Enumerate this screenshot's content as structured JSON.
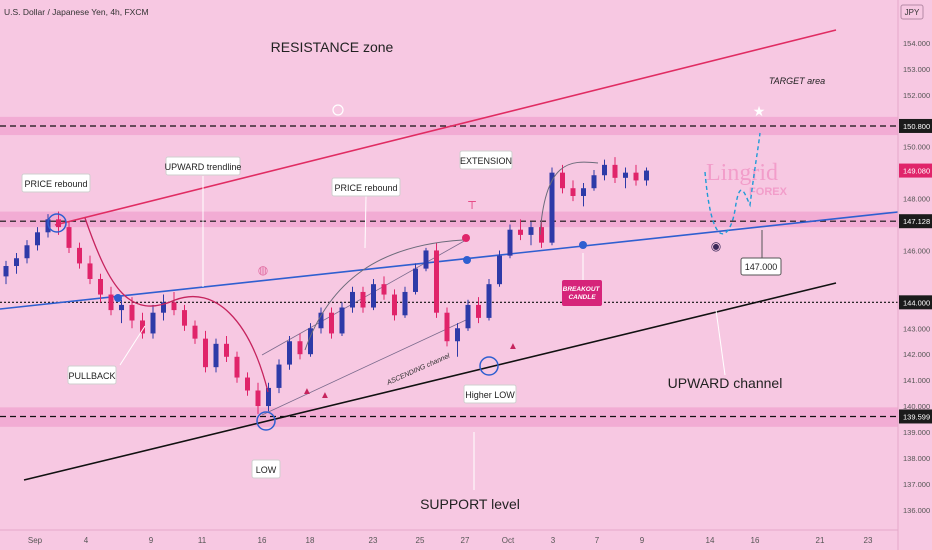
{
  "header": {
    "symbol_title": "U.S. Dollar / Japanese Yen, 4h, FXCM",
    "currency": "JPY"
  },
  "watermark": {
    "text": "Lingrid",
    "sub": "FOREX"
  },
  "colors": {
    "background": "#f7c8e2",
    "zone_band": "#f0a3cf",
    "bull_candle": "#2e3aa8",
    "bear_candle": "#e0246a",
    "trendline_blue": "#2f5fd0",
    "channel_red": "#e02c62",
    "support_black": "#111111",
    "badge_pink": "#d6247a"
  },
  "annotations": {
    "resistance_zone": "RESISTANCE zone",
    "target_area": "TARGET area",
    "price_rebound_1": "PRICE rebound",
    "upward_trendline": "UPWARD trendline",
    "price_rebound_2": "PRICE rebound",
    "extension": "EXTENSION",
    "pullback": "PULLBACK",
    "ascending_channel": "ASCENDING channel",
    "breakout_candle": "BREAKOUT CANDLE",
    "higher_low": "Higher LOW",
    "low": "LOW",
    "upward_channel": "UPWARD channel",
    "support_level": "SUPPORT level",
    "callout_147": "147.000"
  },
  "chart_data": {
    "type": "candlestick",
    "title": "U.S. Dollar / Japanese Yen, 4h, FXCM",
    "ylabel": "JPY",
    "ylim": [
      135.5,
      155.0
    ],
    "y_ticks": [
      {
        "label": "154.000",
        "value": 154.0
      },
      {
        "label": "153.000",
        "value": 153.0
      },
      {
        "label": "152.000",
        "value": 152.0
      },
      {
        "label": "150.800",
        "value": 150.8,
        "highlight": true
      },
      {
        "label": "150.000",
        "value": 150.0
      },
      {
        "label": "149.080",
        "value": 149.08,
        "current": true
      },
      {
        "label": "148.000",
        "value": 148.0
      },
      {
        "label": "147.128",
        "value": 147.128,
        "highlight": true
      },
      {
        "label": "146.000",
        "value": 146.0
      },
      {
        "label": "144.000",
        "value": 144.0,
        "highlight": true
      },
      {
        "label": "143.000",
        "value": 143.0
      },
      {
        "label": "142.000",
        "value": 142.0
      },
      {
        "label": "141.000",
        "value": 141.0
      },
      {
        "label": "140.000",
        "value": 140.0
      },
      {
        "label": "139.599",
        "value": 139.599,
        "highlight": true
      },
      {
        "label": "139.000",
        "value": 139.0
      },
      {
        "label": "138.000",
        "value": 138.0
      },
      {
        "label": "137.000",
        "value": 137.0
      },
      {
        "label": "136.000",
        "value": 136.0
      }
    ],
    "x_ticks": [
      "Sep",
      "4",
      "9",
      "11",
      "16",
      "18",
      "23",
      "25",
      "27",
      "Oct",
      "3",
      "7",
      "9",
      "14",
      "16",
      "21",
      "23"
    ],
    "levels": [
      {
        "value": 150.8,
        "style": "dashed"
      },
      {
        "value": 147.128,
        "style": "dashed"
      },
      {
        "value": 144.0,
        "style": "dotted"
      },
      {
        "value": 139.599,
        "style": "dashed"
      }
    ],
    "zones": [
      {
        "name": "resistance",
        "from": 150.45,
        "to": 151.15
      },
      {
        "name": "mid",
        "from": 146.9,
        "to": 147.5
      },
      {
        "name": "support",
        "from": 139.2,
        "to": 139.95
      }
    ],
    "candles": [
      [
        145.0,
        145.6,
        144.7,
        145.4
      ],
      [
        145.4,
        145.9,
        145.1,
        145.7
      ],
      [
        145.7,
        146.4,
        145.5,
        146.2
      ],
      [
        146.2,
        146.9,
        146.0,
        146.7
      ],
      [
        146.7,
        147.4,
        146.5,
        147.2
      ],
      [
        147.2,
        147.5,
        146.6,
        146.9
      ],
      [
        146.9,
        147.1,
        145.9,
        146.1
      ],
      [
        146.1,
        146.3,
        145.3,
        145.5
      ],
      [
        145.5,
        145.8,
        144.7,
        144.9
      ],
      [
        144.9,
        145.1,
        144.0,
        144.3
      ],
      [
        144.3,
        144.6,
        143.5,
        143.7
      ],
      [
        143.7,
        144.1,
        143.2,
        143.9
      ],
      [
        143.9,
        144.2,
        143.0,
        143.3
      ],
      [
        143.3,
        143.6,
        142.6,
        142.8
      ],
      [
        142.8,
        143.9,
        142.6,
        143.6
      ],
      [
        143.6,
        144.3,
        143.3,
        144.0
      ],
      [
        144.0,
        144.4,
        143.5,
        143.7
      ],
      [
        143.7,
        143.9,
        142.9,
        143.1
      ],
      [
        143.1,
        143.3,
        142.4,
        142.6
      ],
      [
        142.6,
        142.9,
        141.3,
        141.5
      ],
      [
        141.5,
        142.6,
        141.3,
        142.4
      ],
      [
        142.4,
        142.7,
        141.7,
        141.9
      ],
      [
        141.9,
        142.1,
        140.9,
        141.1
      ],
      [
        141.1,
        141.3,
        140.4,
        140.6
      ],
      [
        140.6,
        140.9,
        139.7,
        140.0
      ],
      [
        140.0,
        140.9,
        139.8,
        140.7
      ],
      [
        140.7,
        141.8,
        140.5,
        141.6
      ],
      [
        141.6,
        142.7,
        141.4,
        142.5
      ],
      [
        142.5,
        142.8,
        141.8,
        142.0
      ],
      [
        142.0,
        143.2,
        141.9,
        143.0
      ],
      [
        143.0,
        143.8,
        142.8,
        143.6
      ],
      [
        143.6,
        143.8,
        142.6,
        142.8
      ],
      [
        142.8,
        144.0,
        142.7,
        143.8
      ],
      [
        143.8,
        144.6,
        143.6,
        144.4
      ],
      [
        144.4,
        144.6,
        143.6,
        143.8
      ],
      [
        143.8,
        144.9,
        143.7,
        144.7
      ],
      [
        144.7,
        145.0,
        144.1,
        144.3
      ],
      [
        144.3,
        144.5,
        143.3,
        143.5
      ],
      [
        143.5,
        144.6,
        143.4,
        144.4
      ],
      [
        144.4,
        145.5,
        144.3,
        145.3
      ],
      [
        145.3,
        146.1,
        145.2,
        146.0
      ],
      [
        146.0,
        146.3,
        143.4,
        143.6
      ],
      [
        143.6,
        143.8,
        142.3,
        142.5
      ],
      [
        142.5,
        143.2,
        141.9,
        143.0
      ],
      [
        143.0,
        144.1,
        142.9,
        143.9
      ],
      [
        143.9,
        144.2,
        143.2,
        143.4
      ],
      [
        143.4,
        144.9,
        143.3,
        144.7
      ],
      [
        144.7,
        146.0,
        144.6,
        145.8
      ],
      [
        145.8,
        147.0,
        145.7,
        146.8
      ],
      [
        146.8,
        147.2,
        146.4,
        146.6
      ],
      [
        146.6,
        147.1,
        146.2,
        146.9
      ],
      [
        146.9,
        147.2,
        146.1,
        146.3
      ],
      [
        146.3,
        149.2,
        146.2,
        149.0
      ],
      [
        149.0,
        149.3,
        148.2,
        148.4
      ],
      [
        148.4,
        148.7,
        147.9,
        148.1
      ],
      [
        148.1,
        148.6,
        147.7,
        148.4
      ],
      [
        148.4,
        149.1,
        148.3,
        148.9
      ],
      [
        148.9,
        149.5,
        148.7,
        149.3
      ],
      [
        149.3,
        149.6,
        148.6,
        148.8
      ],
      [
        148.8,
        149.2,
        148.4,
        149.0
      ],
      [
        149.0,
        149.3,
        148.5,
        148.7
      ],
      [
        148.7,
        149.2,
        148.5,
        149.08
      ]
    ]
  }
}
